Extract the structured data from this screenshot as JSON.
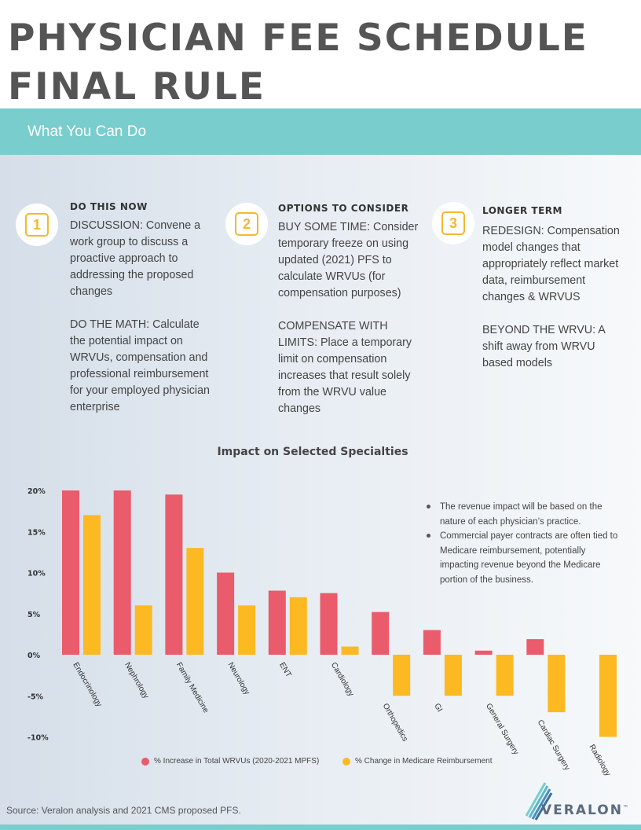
{
  "header": {
    "title_line1": "PHYSICIAN FEE SCHEDULE",
    "title_line2": "FINAL RULE",
    "subtitle": "What You Can Do"
  },
  "steps": [
    {
      "number": "1",
      "heading": "DO THIS NOW",
      "text": "DISCUSSION: Convene a work group to discuss a proactive approach to addressing the proposed changes\n\nDO THE MATH: Calculate the potential impact on WRVUs, compensation and professional reimbursement for your employed physician enterprise"
    },
    {
      "number": "2",
      "heading": "OPTIONS TO CONSIDER",
      "text": "BUY SOME TIME: Consider temporary freeze on using updated (2021) PFS to calculate WRVUs (for compensation purposes)\n\nCOMPENSATE WITH LIMITS: Place a temporary limit on compensation  increases that result solely from the WRVU value changes"
    },
    {
      "number": "3",
      "heading": "LONGER TERM",
      "text": "REDESIGN: Compensation model changes that appropriately reflect market data, reimbursement changes & WRVUS\n\nBEYOND THE WRVU: A shift away from WRVU based models"
    }
  ],
  "chart_data": {
    "type": "bar",
    "title": "Impact on Selected Specialties",
    "xlabel": "",
    "ylabel": "",
    "ylim": [
      -10,
      20
    ],
    "yticks": [
      "20%",
      "15%",
      "10%",
      "5%",
      "0%",
      "-5%",
      "-10%"
    ],
    "ytick_values": [
      20,
      15,
      10,
      5,
      0,
      -5,
      -10
    ],
    "categories": [
      "Endocrinology",
      "Nephrology",
      "Family Medicine",
      "Neurology",
      "ENT",
      "Cardiology",
      "Orthopedics",
      "GI",
      "General Surgery",
      "Cardiac Surgery",
      "Radiology"
    ],
    "series": [
      {
        "name": "% Increase in Total WRVUs (2020-2021 MPFS)",
        "color": "#ea5b6b",
        "values": [
          20,
          20,
          19.5,
          10,
          7.8,
          7.5,
          5.2,
          3,
          0.5,
          1.9,
          0
        ]
      },
      {
        "name": "% Change in Medicare Reimbursement",
        "color": "#fcb922",
        "values": [
          17,
          6,
          13,
          6,
          7,
          1,
          -5,
          -5,
          -5,
          -7,
          -10
        ]
      }
    ],
    "legend_position": "bottom",
    "grid": false
  },
  "notes": [
    "The revenue impact will be based on the nature of each physician’s practice.",
    "Commercial payer contracts are often tied to Medicare reimbursement, potentially impacting revenue beyond the Medicare portion of the business."
  ],
  "footer": {
    "source": "Source: Veralon analysis and 2021 CMS proposed PFS.",
    "logo_text": "VERALON",
    "logo_tm": "™"
  }
}
